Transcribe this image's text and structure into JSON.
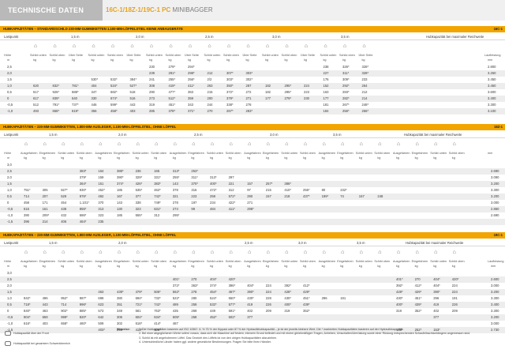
{
  "header": {
    "section_tag": "TECHNISCHE DATEN",
    "model_bold": "16C-1/18Z-1/19C-1 PC",
    "model_light": "MINIBAGGER"
  },
  "tables": [
    {
      "title": "HUBKAPAZITÄTEN – STANDARDSCHILD 230-MM-GUMMIKETTEN 1.100-MM-LÖFFELSTIEL KEINE ANBAUGERÄTE",
      "code": "16C-1",
      "lastpunkt": "Lastpunkt",
      "reach_groups": [
        "1,5 m",
        "2,0 m",
        "2,5 m",
        "3,0 m",
        "3,5 m"
      ],
      "max_label": "Hubkapazität bei maximaler Reichweite",
      "unit_headers": [
        "Höhe",
        "Schild unten",
        "Schild oben",
        "Über Seite",
        "Schild unten",
        "Schild oben",
        "Über Seite",
        "Schild unten",
        "Schild oben",
        "Über Seite",
        "Schild unten",
        "Schild oben",
        "Über Seite",
        "Schild unten",
        "Schild oben",
        "Über Seite",
        "Schild unten",
        "Schild oben",
        "Über Seite",
        "Laufleistung"
      ],
      "units": [
        "m",
        "kg",
        "kg",
        "kg",
        "kg",
        "kg",
        "kg",
        "kg",
        "kg",
        "kg",
        "kg",
        "kg",
        "kg",
        "kg",
        "kg",
        "kg",
        "kg",
        "kg",
        "kg",
        "mm"
      ],
      "rows": [
        [
          "2,5",
          "",
          "",
          "",
          "",
          "",
          "",
          "230",
          "279*",
          "294*",
          "",
          "",
          "",
          "",
          "",
          "",
          "238",
          "326*",
          "328*",
          "2.800"
        ],
        [
          "2,0",
          "",
          "",
          "",
          "",
          "",
          "",
          "239",
          "291*",
          "298*",
          "212",
          "307*",
          "303*",
          "",
          "",
          "",
          "227",
          "311*",
          "328*",
          "3.250"
        ],
        [
          "1,5",
          "",
          "",
          "",
          "530*",
          "532*",
          "384*",
          "241",
          "255*",
          "256*",
          "2/2",
          "303*",
          "302*",
          "",
          "",
          "",
          "176",
          "309*",
          "233",
          "3.450"
        ],
        [
          "1,0",
          "620",
          "832*",
          "781*",
          "404",
          "534*",
          "527*",
          "308",
          "419*",
          "411*",
          "263",
          "350*",
          "287",
          "182",
          "295*",
          "224",
          "152",
          "292*",
          "264",
          "3.450"
        ],
        [
          "0,5",
          "617",
          "926*",
          "688*",
          "347",
          "682*",
          "518",
          "290",
          "477*",
          "363",
          "215",
          "372*",
          "272",
          "182",
          "295*",
          "223",
          "163",
          "283*",
          "212",
          "3.600"
        ],
        [
          "0",
          "617",
          "839*",
          "640",
          "330",
          "674*",
          "516",
          "273",
          "512*",
          "359",
          "200",
          "379*",
          "271",
          "177",
          "279*",
          "230",
          "177",
          "282*",
          "214",
          "3.400"
        ],
        [
          "-0,5",
          "512",
          "791*",
          "737*",
          "446",
          "599*",
          "443",
          "319",
          "451*",
          "343",
          "244",
          "338*",
          "278",
          "",
          "",
          "",
          "181",
          "267*",
          "248*",
          "3.300"
        ],
        [
          "-1,0",
          "493",
          "658*",
          "619*",
          "356",
          "458*",
          "403",
          "285",
          "378*",
          "371*",
          "270",
          "267*",
          "283*",
          "",
          "",
          "",
          "184",
          "256*",
          "256*",
          "3.100"
        ]
      ]
    },
    {
      "title": "HUBKAPAZITÄTEN – 230-MM-GUMMIKETTEN, 1.800-MM-AUSLEGER, 1.100-MM-LÖFFELSTIEL, OHNE LÖFFEL",
      "code": "18Z-1",
      "lastpunkt": "Lastpunkt",
      "reach_groups": [
        "1,5 m",
        "2,0 m",
        "2,5 m",
        "3,0 m",
        "3,5 m"
      ],
      "max_label": "Hubkapazität bei maximaler Reichweite",
      "unit_headers": [
        "Höhe",
        "Ausgefahren",
        "Eingefahren",
        "Schild unten",
        "Schild oben",
        "Ausgefahren",
        "Eingefahren",
        "Schild unten",
        "Schild oben",
        "Ausgefahren",
        "Eingefahren",
        "Schild unten",
        "Schild oben",
        "Ausgefahren",
        "Eingefahren",
        "Schild unten",
        "Schild oben",
        "Ausgefahren",
        "Eingefahren",
        "Schild unten",
        "Schild oben",
        "Ausgefahren",
        "Eingefahren",
        "Schild unten",
        "Schild oben",
        "mm"
      ],
      "units": [
        "m",
        "kg",
        "kg",
        "kg",
        "kg",
        "kg",
        "kg",
        "kg",
        "kg",
        "kg",
        "kg",
        "kg",
        "kg",
        "kg",
        "kg",
        "kg",
        "kg",
        "kg",
        "kg",
        "kg",
        "kg",
        "kg",
        "kg",
        "kg",
        "kg",
        ""
      ],
      "rows": [
        [
          "3,0",
          "",
          "",
          "",
          "",
          "",
          "",
          "",
          "",
          "",
          "",
          "",
          "",
          "",
          "",
          "",
          "",
          "",
          "",
          "",
          "",
          "",
          "",
          "",
          "",
          ""
        ],
        [
          "2,5",
          "",
          "",
          "",
          "383*",
          "164",
          "388*",
          "236",
          "165",
          "313*",
          "253*",
          "",
          "",
          "",
          "",
          "",
          "",
          "",
          "",
          "",
          "",
          "",
          "",
          "",
          "",
          "2.690"
        ],
        [
          "2,0",
          "",
          "",
          "",
          "379*",
          "159",
          "390*",
          "329*",
          "331*",
          "255*",
          "311*",
          "313*",
          "297",
          "",
          "",
          "",
          "",
          "",
          "",
          "",
          "",
          "",
          "",
          "",
          "",
          "3.090"
        ],
        [
          "1,5",
          "",
          "",
          "",
          "364*",
          "151",
          "374*",
          "426*",
          "383*",
          "143",
          "370*",
          "400*",
          "221",
          "157",
          "257*",
          "386*",
          "",
          "",
          "",
          "",
          "",
          "",
          "",
          "",
          "",
          "3.200"
        ],
        [
          "1,0",
          "751*",
          "305",
          "827*",
          "930*",
          "452*",
          "185",
          "535*",
          "462*",
          "378",
          "316",
          "472*",
          "312",
          "97",
          "215",
          "410*",
          "255*",
          "80",
          "232*",
          "",
          "",
          "",
          "",
          "",
          "",
          "3.300"
        ],
        [
          "0,5",
          "714",
          "207",
          "529",
          "976*",
          "492",
          "167",
          "377",
          "742*",
          "321",
          "223",
          "259",
          "572*",
          "290",
          "157",
          "218",
          "437*",
          "199*",
          "74",
          "167",
          "248",
          "",
          "",
          "",
          "",
          "3.200"
        ],
        [
          "0",
          "458",
          "171",
          "454",
          "1.101*",
          "370",
          "143",
          "338",
          "749*",
          "278",
          "197",
          "234",
          "422*",
          "271",
          "",
          "",
          "",
          "",
          "",
          "",
          "",
          "",
          "",
          "",
          "",
          "3.000"
        ],
        [
          "-0,5",
          "615",
          "161",
          "438",
          "855*",
          "313",
          "130",
          "323",
          "631*",
          "274",
          "99",
          "484",
          "411*",
          "298*",
          "",
          "",
          "",
          "",
          "",
          "",
          "",
          "",
          "",
          "",
          "",
          "2.860"
        ],
        [
          "-1,0",
          "390",
          "209*",
          "432",
          "686*",
          "323",
          "185",
          "555*",
          "312",
          "295*",
          "",
          "",
          "",
          "",
          "",
          "",
          "",
          "",
          "",
          "",
          "",
          "",
          "",
          "",
          "",
          "2.690"
        ],
        [
          "-1,5",
          "396",
          "214",
          "406",
          "464*",
          "235",
          "",
          "",
          "",
          "",
          "",
          "",
          "",
          "",
          "",
          "",
          "",
          "",
          "",
          "",
          "",
          "",
          "",
          "",
          "",
          ""
        ]
      ]
    },
    {
      "title": "HUBKAPAZITÄTEN – 230-MM-GUMMIKETTEN, 1.800-MM-AUSLEGER, 1.100-MM-LÖFFELSTIEL, OHNE LÖFFEL",
      "code": "19C-1",
      "lastpunkt": "Lastpunkt",
      "reach_groups": [
        "1,5 m",
        "2,0 m",
        "2,5 m",
        "3,0 m",
        "3,5 m"
      ],
      "max_label": "Hubkapazität bei maximaler Reichweite",
      "unit_headers": [
        "Höhe",
        "Ausgefahren",
        "Eingefahren",
        "Schild unten",
        "Schild oben",
        "Ausgefahren",
        "Eingefahren",
        "Schild unten",
        "Schild oben",
        "Ausgefahren",
        "Eingefahren",
        "Schild unten",
        "Schild oben",
        "Ausgefahren",
        "Eingefahren",
        "Schild unten",
        "Schild oben",
        "Ausgefahren",
        "Eingefahren",
        "Schild unten",
        "Schild oben",
        "Ausgefahren",
        "Eingefahren",
        "Schild unten",
        "Schild oben",
        "Laufleistung"
      ],
      "units": [
        "m",
        "kg",
        "kg",
        "kg",
        "kg",
        "kg",
        "kg",
        "kg",
        "kg",
        "kg",
        "kg",
        "kg",
        "kg",
        "kg",
        "kg",
        "kg",
        "kg",
        "kg",
        "kg",
        "kg",
        "kg",
        "kg",
        "kg",
        "kg",
        "kg",
        "mm"
      ],
      "rows": [
        [
          "3,0",
          "",
          "",
          "",
          "",
          "",
          "",
          "",
          "",
          "",
          "",
          "",
          "",
          "",
          "",
          "",
          "",
          "",
          "",
          "",
          "",
          "",
          "",
          "",
          "",
          ""
        ],
        [
          "2,5",
          "",
          "",
          "",
          "",
          "",
          "",
          "",
          "",
          "401*",
          "270",
          "404*",
          "420*",
          "",
          "",
          "",
          "",
          "",
          "",
          "",
          "",
          "401*",
          "270",
          "404*",
          "420*",
          "2.600"
        ],
        [
          "2,0",
          "",
          "",
          "",
          "",
          "",
          "",
          "",
          "",
          "372*",
          "363*",
          "374*",
          "396*",
          "404*",
          "224",
          "392*",
          "412*",
          "",
          "",
          "",
          "",
          "392*",
          "412*",
          "404*",
          "224",
          "3.000"
        ],
        [
          "1,5",
          "",
          "",
          "",
          "",
          "463",
          "439*",
          "479*",
          "506*",
          "562*",
          "278",
          "454*",
          "467*",
          "390*",
          "224",
          "428*",
          "429*",
          "",
          "",
          "",
          "",
          "428*",
          "429*",
          "390*",
          "224",
          "3.200"
        ],
        [
          "1,0",
          "942*",
          "496",
          "952*",
          "987*",
          "698",
          "380",
          "694*",
          "732*",
          "522*",
          "280",
          "524*",
          "550*",
          "430*",
          "228",
          "430*",
          "451*",
          "296",
          "191",
          "",
          "",
          "430*",
          "451*",
          "296",
          "191",
          "3.300"
        ],
        [
          "0,5",
          "718*",
          "443",
          "714",
          "996*",
          "623",
          "351",
          "721*",
          "742*",
          "489",
          "259",
          "532*",
          "577*",
          "419",
          "226",
          "400*",
          "439*",
          "",
          "",
          "",
          "",
          "400*",
          "439*",
          "419",
          "226",
          "3.400"
        ],
        [
          "0",
          "840*",
          "463",
          "902*",
          "885*",
          "573",
          "349",
          "581",
          "753*",
          "435",
          "269",
          "449",
          "591*",
          "402",
          "209",
          "319",
          "352*",
          "",
          "",
          "",
          "",
          "319",
          "352*",
          "402",
          "209",
          "3.300"
        ],
        [
          "-0,5",
          "904*",
          "659",
          "999*",
          "820*",
          "642",
          "306",
          "604*",
          "634*",
          "505*",
          "258",
          "452*",
          "502*",
          "377",
          "",
          "",
          "",
          "",
          "",
          "",
          "",
          "",
          "",
          "377",
          "",
          "3.200"
        ],
        [
          "-1,0",
          "616*",
          "403",
          "658*",
          "460*",
          "509",
          "302",
          "518*",
          "414*",
          "487",
          "",
          "",
          "",
          "",
          "",
          "",
          "",
          "",
          "",
          "",
          "",
          "",
          "",
          "",
          "",
          "3.000"
        ],
        [
          "-1,5",
          "",
          "",
          "",
          "",
          "403*",
          "298",
          "413*",
          "308*",
          "",
          "",
          "",
          "",
          "",
          "",
          "",
          "",
          "",
          "",
          "",
          "",
          "135*",
          "252*",
          "153*",
          "",
          "2.730"
        ]
      ]
    }
  ],
  "legend": [
    {
      "icon": "front-icon",
      "label": "Hubkapazität über der Front"
    },
    {
      "icon": "side-icon",
      "label": "Hubkapazität bei gesamtem Schwenkbereich"
    }
  ],
  "hint_label": "Hinweise:",
  "notes": [
    "1. Die Hubkapazitäten basieren auf ISO 10567. 6. % 75 % der Kippast oder 87 % der Hydraulikhubkapazität – je ist der jeweils kleinere Wert. Die * markierten Hubkapazitäten basieren auf der Hydraulikkapazität.",
    "2. Bei einer abgeglichenen Werte sofern voraus, dass sich die Maschine auf festem, ebenem Grund befindet und mit einem gleichmäßigen Tragen, Anheben, Umschalten/Umrüstung sowie einer Rüstung entsprechenden Schaufeltrachtanhängern angemessen sind.",
    "3. Schild ist mit angehobenem Löffel. Das Gewicht des Löffels ist von den obigen Hubkapazitäten abzuziehen.",
    "4. Unterschiedliche Länder haben ggf. andere gesetzliche Bestimmungen. Fragen Sie bitte Ihren Händler."
  ]
}
